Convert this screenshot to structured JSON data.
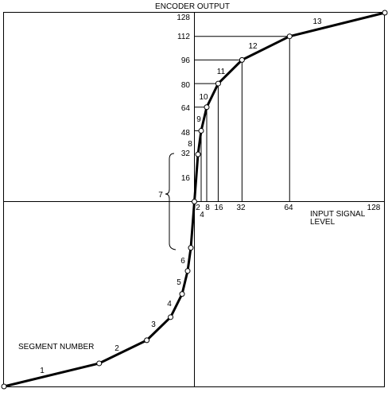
{
  "title": "ENCODER OUTPUT",
  "x_axis_label_line1": "INPUT SIGNAL",
  "x_axis_label_line2": "LEVEL",
  "segment_number_label": "SEGMENT NUMBER",
  "x_ticks": [
    "2",
    "4",
    "8",
    "16",
    "32",
    "64",
    "128"
  ],
  "y_ticks": [
    "16",
    "32",
    "48",
    "64",
    "80",
    "96",
    "112",
    "128"
  ],
  "segment_labels": [
    "1",
    "2",
    "3",
    "4",
    "5",
    "6",
    "7",
    "8",
    "9",
    "10",
    "11",
    "12",
    "13"
  ],
  "chart_data": {
    "type": "line",
    "title": "ENCODER OUTPUT",
    "xlabel": "INPUT SIGNAL LEVEL",
    "ylabel": "ENCODER OUTPUT",
    "x_ticks": [
      2,
      4,
      8,
      16,
      32,
      64,
      128
    ],
    "y_ticks": [
      16,
      32,
      48,
      64,
      80,
      96,
      112,
      128
    ],
    "xlim": [
      -128,
      128
    ],
    "ylim": [
      -128,
      128
    ],
    "series": [
      {
        "x": [
          -128,
          -64,
          -32,
          -16,
          -8,
          -4,
          -2,
          0,
          2,
          4,
          8,
          16,
          32,
          64,
          128
        ],
        "y": [
          -128,
          -112,
          -96,
          -80,
          -64,
          -48,
          -32,
          0,
          32,
          48,
          64,
          80,
          96,
          112,
          128
        ]
      }
    ],
    "segments": [
      "1",
      "2",
      "3",
      "4",
      "5",
      "6",
      "7",
      "8",
      "9",
      "10",
      "11",
      "12",
      "13"
    ]
  }
}
